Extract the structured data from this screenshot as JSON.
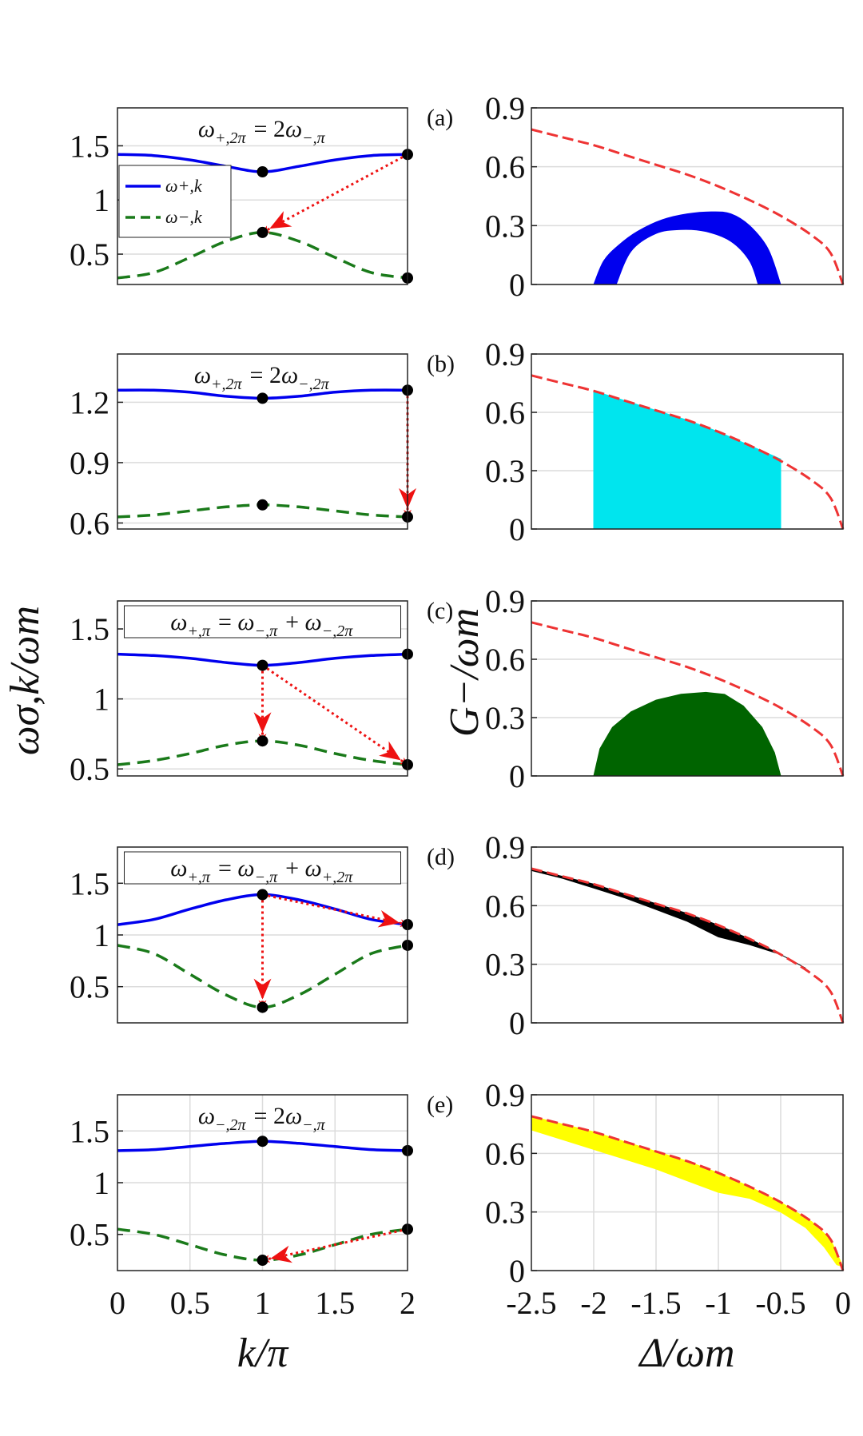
{
  "chart_data": [
    {
      "type": "line",
      "panel": "a",
      "equation": "ω+,2π = 2ω−,π",
      "xlim": [
        0,
        2
      ],
      "ylim": [
        0.22,
        1.85
      ],
      "yticks": [
        0.5,
        1,
        1.5
      ],
      "ytick_labels": [
        "0.5",
        "1",
        "1.5"
      ],
      "xgrid": [],
      "legend": [
        "ω+,k",
        "ω−,k"
      ],
      "series": [
        {
          "name": "ω+,k",
          "x": [
            0,
            0.25,
            0.5,
            0.75,
            1,
            1.25,
            1.5,
            1.75,
            2
          ],
          "values": [
            1.42,
            1.41,
            1.37,
            1.31,
            1.26,
            1.31,
            1.37,
            1.41,
            1.42
          ]
        },
        {
          "name": "ω−,k",
          "x": [
            0,
            0.25,
            0.5,
            0.75,
            1,
            1.25,
            1.5,
            1.75,
            2
          ],
          "values": [
            0.28,
            0.33,
            0.47,
            0.62,
            0.7,
            0.62,
            0.47,
            0.33,
            0.28
          ]
        }
      ],
      "points": [
        {
          "x": 1,
          "y": 1.26
        },
        {
          "x": 1,
          "y": 0.7
        },
        {
          "x": 2,
          "y": 1.42
        },
        {
          "x": 2,
          "y": 0.28
        }
      ],
      "arrows": [
        {
          "from": [
            2,
            1.42
          ],
          "to": [
            1,
            0.7
          ]
        }
      ]
    },
    {
      "type": "line",
      "panel": "b",
      "equation": "ω+,2π = 2ω−,2π",
      "xlim": [
        0,
        2
      ],
      "ylim": [
        0.57,
        1.44
      ],
      "yticks": [
        0.6,
        0.9,
        1.2
      ],
      "ytick_labels": [
        "0.6",
        "0.9",
        "1.2"
      ],
      "xgrid": [],
      "series": [
        {
          "name": "ω+,k",
          "x": [
            0,
            0.25,
            0.5,
            0.75,
            1,
            1.25,
            1.5,
            1.75,
            2
          ],
          "values": [
            1.26,
            1.26,
            1.25,
            1.23,
            1.22,
            1.23,
            1.25,
            1.26,
            1.26
          ]
        },
        {
          "name": "ω−,k",
          "x": [
            0,
            0.25,
            0.5,
            0.75,
            1,
            1.25,
            1.5,
            1.75,
            2
          ],
          "values": [
            0.63,
            0.64,
            0.66,
            0.68,
            0.69,
            0.68,
            0.66,
            0.64,
            0.63
          ]
        }
      ],
      "points": [
        {
          "x": 1,
          "y": 1.22
        },
        {
          "x": 1,
          "y": 0.69
        },
        {
          "x": 2,
          "y": 1.26
        },
        {
          "x": 2,
          "y": 0.63
        }
      ],
      "arrows": [
        {
          "from": [
            2,
            1.26
          ],
          "to": [
            2,
            0.63
          ]
        }
      ]
    },
    {
      "type": "line",
      "panel": "c",
      "equation": "ω+,π = ω−,π + ω−,2π",
      "xlim": [
        0,
        2
      ],
      "ylim": [
        0.45,
        1.7
      ],
      "yticks": [
        0.5,
        1,
        1.5
      ],
      "ytick_labels": [
        "0.5",
        "1",
        "1.5"
      ],
      "xgrid": [],
      "ylabel": "ωσ,k/ωm",
      "series": [
        {
          "name": "ω+,k",
          "x": [
            0,
            0.25,
            0.5,
            0.75,
            1,
            1.25,
            1.5,
            1.75,
            2
          ],
          "values": [
            1.32,
            1.31,
            1.29,
            1.26,
            1.24,
            1.26,
            1.29,
            1.31,
            1.32
          ]
        },
        {
          "name": "ω−,k",
          "x": [
            0,
            0.25,
            0.5,
            0.75,
            1,
            1.25,
            1.5,
            1.75,
            2
          ],
          "values": [
            0.53,
            0.56,
            0.61,
            0.67,
            0.7,
            0.67,
            0.61,
            0.56,
            0.53
          ]
        }
      ],
      "points": [
        {
          "x": 1,
          "y": 1.24
        },
        {
          "x": 1,
          "y": 0.7
        },
        {
          "x": 2,
          "y": 1.32
        },
        {
          "x": 2,
          "y": 0.53
        }
      ],
      "arrows": [
        {
          "from": [
            1,
            1.24
          ],
          "to": [
            1,
            0.7
          ]
        },
        {
          "from": [
            1,
            1.24
          ],
          "to": [
            2,
            0.53
          ]
        }
      ]
    },
    {
      "type": "line",
      "panel": "d",
      "equation": "ω+,π = ω−,π + ω+,2π",
      "xlim": [
        0,
        2
      ],
      "ylim": [
        0.15,
        1.85
      ],
      "yticks": [
        0.5,
        1,
        1.5
      ],
      "ytick_labels": [
        "0.5",
        "1",
        "1.5"
      ],
      "xgrid": [],
      "series": [
        {
          "name": "ω+,k",
          "x": [
            0,
            0.25,
            0.5,
            0.75,
            1,
            1.25,
            1.5,
            1.75,
            2
          ],
          "values": [
            1.1,
            1.15,
            1.25,
            1.34,
            1.39,
            1.34,
            1.25,
            1.15,
            1.1
          ]
        },
        {
          "name": "ω−,k",
          "x": [
            0,
            0.25,
            0.5,
            0.75,
            1,
            1.25,
            1.5,
            1.75,
            2
          ],
          "values": [
            0.9,
            0.82,
            0.62,
            0.42,
            0.3,
            0.42,
            0.62,
            0.82,
            0.9
          ]
        }
      ],
      "points": [
        {
          "x": 1,
          "y": 1.39
        },
        {
          "x": 1,
          "y": 0.3
        },
        {
          "x": 2,
          "y": 1.1
        },
        {
          "x": 2,
          "y": 0.9
        }
      ],
      "arrows": [
        {
          "from": [
            1,
            1.39
          ],
          "to": [
            1,
            0.3
          ]
        },
        {
          "from": [
            1,
            1.39
          ],
          "to": [
            2,
            1.1
          ]
        }
      ]
    },
    {
      "type": "line",
      "panel": "e",
      "equation": "ω−,2π = 2ω−,π",
      "xlim": [
        0,
        2
      ],
      "ylim": [
        0.15,
        1.85
      ],
      "yticks": [
        0.5,
        1,
        1.5
      ],
      "ytick_labels": [
        "0.5",
        "1",
        "1.5"
      ],
      "xgrid": [
        0.5,
        1,
        1.5
      ],
      "xticks": [
        0,
        0.5,
        1,
        1.5,
        2
      ],
      "xtick_labels": [
        "0",
        "0.5",
        "1",
        "1.5",
        "2"
      ],
      "xlabel": "k/π",
      "series": [
        {
          "name": "ω+,k",
          "x": [
            0,
            0.25,
            0.5,
            0.75,
            1,
            1.25,
            1.5,
            1.75,
            2
          ],
          "values": [
            1.31,
            1.32,
            1.35,
            1.38,
            1.4,
            1.38,
            1.35,
            1.32,
            1.31
          ]
        },
        {
          "name": "ω−,k",
          "x": [
            0,
            0.25,
            0.5,
            0.75,
            1,
            1.25,
            1.5,
            1.75,
            2
          ],
          "values": [
            0.55,
            0.5,
            0.4,
            0.3,
            0.25,
            0.3,
            0.4,
            0.5,
            0.55
          ]
        }
      ],
      "points": [
        {
          "x": 1,
          "y": 1.4
        },
        {
          "x": 1,
          "y": 0.25
        },
        {
          "x": 2,
          "y": 1.31
        },
        {
          "x": 2,
          "y": 0.55
        }
      ],
      "arrows": [
        {
          "from": [
            2,
            0.55
          ],
          "to": [
            1,
            0.25
          ]
        }
      ]
    },
    {
      "type": "area",
      "panel": "a",
      "xlim": [
        -2.5,
        0
      ],
      "ylim": [
        0,
        0.9
      ],
      "yticks": [
        0,
        0.3,
        0.6,
        0.9
      ],
      "ytick_labels": [
        "0",
        "0.3",
        "0.6",
        "0.9"
      ],
      "xgrid": [],
      "boundary": {
        "x": [
          -2.5,
          -2.25,
          -2,
          -1.75,
          -1.5,
          -1.25,
          -1,
          -0.75,
          -0.5,
          -0.25,
          -0.1,
          0
        ],
        "y": [
          0.79,
          0.75,
          0.71,
          0.66,
          0.61,
          0.56,
          0.5,
          0.43,
          0.35,
          0.25,
          0.16,
          0
        ]
      },
      "region_color": "#0000ee",
      "region": {
        "outer_x": [
          -2,
          -1.92,
          -1.8,
          -1.65,
          -1.45,
          -1.25,
          -1.05,
          -0.9,
          -0.75,
          -0.6,
          -0.5
        ],
        "outer_y": [
          0,
          0.12,
          0.2,
          0.27,
          0.33,
          0.36,
          0.37,
          0.36,
          0.3,
          0.18,
          0
        ],
        "inner_x": [
          -0.68,
          -0.75,
          -0.9,
          -1.1,
          -1.3,
          -1.5,
          -1.7,
          -1.82
        ],
        "inner_y": [
          0,
          0.12,
          0.22,
          0.27,
          0.28,
          0.26,
          0.17,
          0
        ]
      }
    },
    {
      "type": "area",
      "panel": "b",
      "xlim": [
        -2.5,
        0
      ],
      "ylim": [
        0,
        0.9
      ],
      "yticks": [
        0,
        0.3,
        0.6,
        0.9
      ],
      "ytick_labels": [
        "0",
        "0.3",
        "0.6",
        "0.9"
      ],
      "xgrid": [],
      "boundary": {
        "x": [
          -2.5,
          -2.25,
          -2,
          -1.75,
          -1.5,
          -1.25,
          -1,
          -0.75,
          -0.5,
          -0.25,
          -0.1,
          0
        ],
        "y": [
          0.79,
          0.75,
          0.71,
          0.66,
          0.61,
          0.56,
          0.5,
          0.43,
          0.35,
          0.25,
          0.16,
          0
        ]
      },
      "region_color": "#00e5ee",
      "region": {
        "x": [
          -2,
          -1.75,
          -1.5,
          -1.25,
          -1,
          -0.75,
          -0.5,
          -0.5,
          -2
        ],
        "y": [
          0.71,
          0.66,
          0.61,
          0.56,
          0.5,
          0.43,
          0.36,
          0,
          0
        ]
      }
    },
    {
      "type": "area",
      "panel": "c",
      "xlim": [
        -2.5,
        0
      ],
      "ylim": [
        0,
        0.9
      ],
      "yticks": [
        0,
        0.3,
        0.6,
        0.9
      ],
      "ytick_labels": [
        "0",
        "0.3",
        "0.6",
        "0.9"
      ],
      "xgrid": [],
      "ylabel": "G−/ωm",
      "boundary": {
        "x": [
          -2.5,
          -2.25,
          -2,
          -1.75,
          -1.5,
          -1.25,
          -1,
          -0.75,
          -0.5,
          -0.25,
          -0.1,
          0
        ],
        "y": [
          0.79,
          0.75,
          0.71,
          0.66,
          0.61,
          0.56,
          0.5,
          0.43,
          0.35,
          0.25,
          0.16,
          0
        ]
      },
      "region_color": "#006400",
      "region": {
        "x": [
          -2,
          -1.95,
          -1.85,
          -1.7,
          -1.5,
          -1.3,
          -1.1,
          -0.95,
          -0.8,
          -0.65,
          -0.55,
          -0.5,
          -2
        ],
        "y": [
          0,
          0.14,
          0.25,
          0.33,
          0.39,
          0.42,
          0.43,
          0.42,
          0.36,
          0.25,
          0.12,
          0,
          0
        ]
      }
    },
    {
      "type": "area",
      "panel": "d",
      "xlim": [
        -2.5,
        0
      ],
      "ylim": [
        0,
        0.9
      ],
      "yticks": [
        0,
        0.3,
        0.6,
        0.9
      ],
      "ytick_labels": [
        "0",
        "0.3",
        "0.6",
        "0.9"
      ],
      "xgrid": [],
      "boundary": {
        "x": [
          -2.5,
          -2.25,
          -2,
          -1.75,
          -1.5,
          -1.25,
          -1,
          -0.75,
          -0.5,
          -0.25,
          -0.1,
          0
        ],
        "y": [
          0.79,
          0.75,
          0.71,
          0.66,
          0.61,
          0.56,
          0.5,
          0.43,
          0.35,
          0.25,
          0.16,
          0
        ]
      },
      "region_color": "#000000",
      "region": {
        "x": [
          -2.5,
          -2.25,
          -2,
          -1.75,
          -1.5,
          -1.25,
          -1,
          -0.75,
          -0.5,
          -0.3,
          -0.5,
          -0.75,
          -1,
          -1.25,
          -1.5,
          -1.75,
          -2,
          -2.25,
          -2.5
        ],
        "y": [
          0.79,
          0.75,
          0.71,
          0.66,
          0.61,
          0.56,
          0.5,
          0.43,
          0.35,
          0.28,
          0.35,
          0.4,
          0.44,
          0.52,
          0.58,
          0.64,
          0.69,
          0.74,
          0.78
        ]
      }
    },
    {
      "type": "area",
      "panel": "e",
      "xlim": [
        -2.5,
        0
      ],
      "ylim": [
        0,
        0.9
      ],
      "yticks": [
        0,
        0.3,
        0.6,
        0.9
      ],
      "ytick_labels": [
        "0",
        "0.3",
        "0.6",
        "0.9"
      ],
      "xgrid": [
        -2,
        -1.5,
        -1,
        -0.5
      ],
      "xticks": [
        -2.5,
        -2,
        -1.5,
        -1,
        -0.5,
        0
      ],
      "xtick_labels": [
        "-2.5",
        "-2",
        "-1.5",
        "-1",
        "-0.5",
        "0"
      ],
      "xlabel": "Δ/ωm",
      "boundary": {
        "x": [
          -2.5,
          -2.25,
          -2,
          -1.75,
          -1.5,
          -1.25,
          -1,
          -0.75,
          -0.5,
          -0.25,
          -0.1,
          0
        ],
        "y": [
          0.79,
          0.75,
          0.71,
          0.66,
          0.61,
          0.56,
          0.5,
          0.43,
          0.35,
          0.25,
          0.16,
          0
        ]
      },
      "region_color": "#ffff00",
      "region": {
        "x": [
          -2.5,
          -2.25,
          -2,
          -1.75,
          -1.5,
          -1.25,
          -1,
          -0.75,
          -0.5,
          -0.25,
          -0.1,
          0,
          -0.05,
          -0.15,
          -0.3,
          -0.5,
          -0.75,
          -1,
          -1.25,
          -1.5,
          -1.75,
          -2,
          -2.25,
          -2.5
        ],
        "y": [
          0.79,
          0.75,
          0.71,
          0.66,
          0.61,
          0.56,
          0.5,
          0.43,
          0.35,
          0.25,
          0.16,
          0.02,
          0.03,
          0.12,
          0.22,
          0.3,
          0.37,
          0.4,
          0.46,
          0.52,
          0.57,
          0.62,
          0.67,
          0.72
        ]
      }
    }
  ]
}
